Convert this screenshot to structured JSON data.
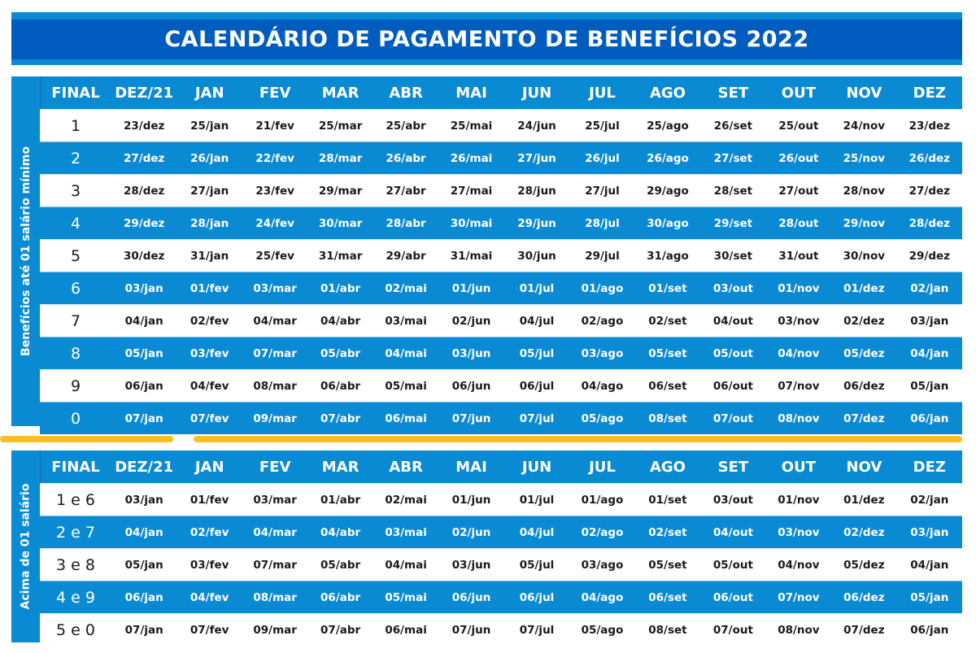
{
  "title": "CALENDÁRIO DE PAGAMENTO DE BENEFÍCIOS 2022",
  "headers": [
    "FINAL",
    "DEZ/21",
    "JAN",
    "FEV",
    "MAR",
    "ABR",
    "MAI",
    "JUN",
    "JUL",
    "AGO",
    "SET",
    "OUT",
    "NOV",
    "DEZ"
  ],
  "table1": {
    "side_label": "Benefícios até 01 salário mínimo",
    "rows": [
      [
        "1",
        "23/dez",
        "25/jan",
        "21/fev",
        "25/mar",
        "25/abr",
        "25/mai",
        "24/jun",
        "25/jul",
        "25/ago",
        "26/set",
        "25/out",
        "24/nov",
        "23/dez"
      ],
      [
        "2",
        "27/dez",
        "26/jan",
        "22/fev",
        "28/mar",
        "26/abr",
        "26/mai",
        "27/jun",
        "26/jul",
        "26/ago",
        "27/set",
        "26/out",
        "25/nov",
        "26/dez"
      ],
      [
        "3",
        "28/dez",
        "27/jan",
        "23/fev",
        "29/mar",
        "27/abr",
        "27/mai",
        "28/jun",
        "27/jul",
        "29/ago",
        "28/set",
        "27/out",
        "28/nov",
        "27/dez"
      ],
      [
        "4",
        "29/dez",
        "28/jan",
        "24/fev",
        "30/mar",
        "28/abr",
        "30/mai",
        "29/jun",
        "28/jul",
        "30/ago",
        "29/set",
        "28/out",
        "29/nov",
        "28/dez"
      ],
      [
        "5",
        "30/dez",
        "31/jan",
        "25/fev",
        "31/mar",
        "29/abr",
        "31/mai",
        "30/jun",
        "29/jul",
        "31/ago",
        "30/set",
        "31/out",
        "30/nov",
        "29/dez"
      ],
      [
        "6",
        "03/jan",
        "01/fev",
        "03/mar",
        "01/abr",
        "02/mai",
        "01/jun",
        "01/jul",
        "01/ago",
        "01/set",
        "03/out",
        "01/nov",
        "01/dez",
        "02/jan"
      ],
      [
        "7",
        "04/jan",
        "02/fev",
        "04/mar",
        "04/abr",
        "03/mai",
        "02/jun",
        "04/jul",
        "02/ago",
        "02/set",
        "04/out",
        "03/nov",
        "02/dez",
        "03/jan"
      ],
      [
        "8",
        "05/jan",
        "03/fev",
        "07/mar",
        "05/abr",
        "04/mai",
        "03/jun",
        "05/jul",
        "03/ago",
        "05/set",
        "05/out",
        "04/nov",
        "05/dez",
        "04/jan"
      ],
      [
        "9",
        "06/jan",
        "04/fev",
        "08/mar",
        "06/abr",
        "05/mai",
        "06/jun",
        "06/jul",
        "04/ago",
        "06/set",
        "06/out",
        "07/nov",
        "06/dez",
        "05/jan"
      ],
      [
        "0",
        "07/jan",
        "07/fev",
        "09/mar",
        "07/abr",
        "06/mai",
        "07/jun",
        "07/jul",
        "05/ago",
        "08/set",
        "07/out",
        "08/nov",
        "07/dez",
        "06/jan"
      ]
    ]
  },
  "table2": {
    "side_label": "Acima de 01 salário",
    "rows": [
      [
        "1 e 6",
        "03/jan",
        "01/fev",
        "03/mar",
        "01/abr",
        "02/mai",
        "01/jun",
        "01/jul",
        "01/ago",
        "01/set",
        "03/out",
        "01/nov",
        "01/dez",
        "02/jan"
      ],
      [
        "2 e 7",
        "04/jan",
        "02/fev",
        "04/mar",
        "04/abr",
        "03/mai",
        "02/jun",
        "04/jul",
        "02/ago",
        "02/set",
        "04/out",
        "03/nov",
        "02/dez",
        "03/jan"
      ],
      [
        "3 e 8",
        "05/jan",
        "03/fev",
        "07/mar",
        "05/abr",
        "04/mai",
        "03/jun",
        "05/jul",
        "03/ago",
        "05/set",
        "05/out",
        "04/nov",
        "05/dez",
        "04/jan"
      ],
      [
        "4 e 9",
        "06/jan",
        "04/fev",
        "08/mar",
        "06/abr",
        "05/mai",
        "06/jun",
        "06/jul",
        "04/ago",
        "06/set",
        "06/out",
        "07/nov",
        "06/dez",
        "05/jan"
      ],
      [
        "5 e 0",
        "07/jan",
        "07/fev",
        "09/mar",
        "07/abr",
        "06/mai",
        "07/jun",
        "07/jul",
        "05/ago",
        "08/set",
        "07/out",
        "08/nov",
        "07/dez",
        "06/jan"
      ]
    ]
  },
  "colors": {
    "band": "#0b8ad4",
    "title_bg": "#005dbf",
    "divider": "#fbbf24"
  }
}
